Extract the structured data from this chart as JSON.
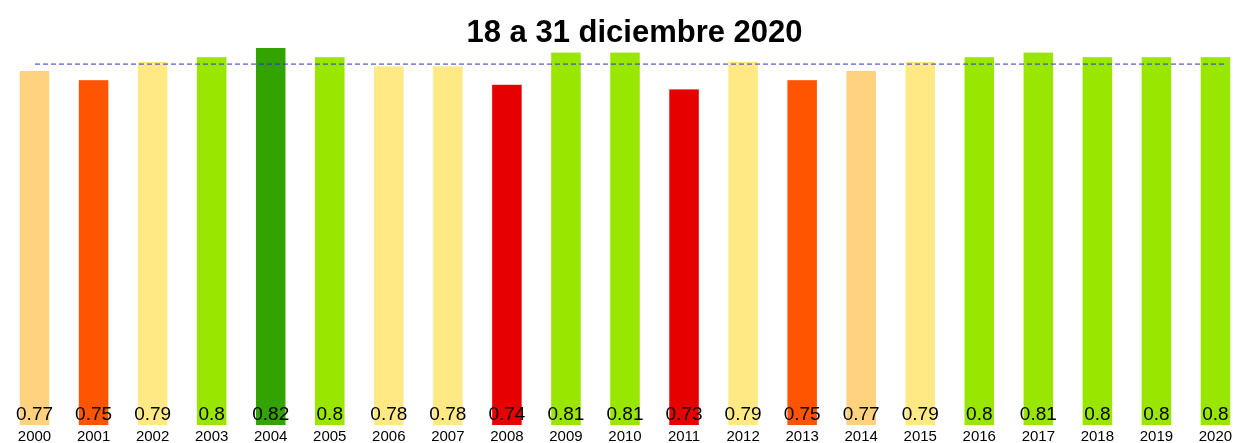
{
  "chart_data": {
    "type": "bar",
    "title": "18 a 31 diciembre 2020",
    "categories": [
      "2000",
      "2001",
      "2002",
      "2003",
      "2004",
      "2005",
      "2006",
      "2007",
      "2008",
      "2009",
      "2010",
      "2011",
      "2012",
      "2013",
      "2014",
      "2015",
      "2016",
      "2017",
      "2018",
      "2019",
      "2020"
    ],
    "values": [
      0.77,
      0.75,
      0.79,
      0.8,
      0.82,
      0.8,
      0.78,
      0.78,
      0.74,
      0.81,
      0.81,
      0.73,
      0.79,
      0.75,
      0.77,
      0.79,
      0.8,
      0.81,
      0.8,
      0.8,
      0.8
    ],
    "colors": [
      "#ffd280",
      "#ff5500",
      "#ffe985",
      "#99e600",
      "#33a300",
      "#99e600",
      "#ffe985",
      "#ffe985",
      "#e60000",
      "#99e600",
      "#99e600",
      "#e60000",
      "#ffe985",
      "#ff5500",
      "#ffd280",
      "#ffe985",
      "#99e600",
      "#99e600",
      "#99e600",
      "#99e600",
      "#99e600"
    ],
    "data_labels": true,
    "ref_lines": [
      {
        "axis": "y",
        "value": 0.785,
        "color": "#3333cc",
        "line_style": "dashed"
      }
    ]
  }
}
